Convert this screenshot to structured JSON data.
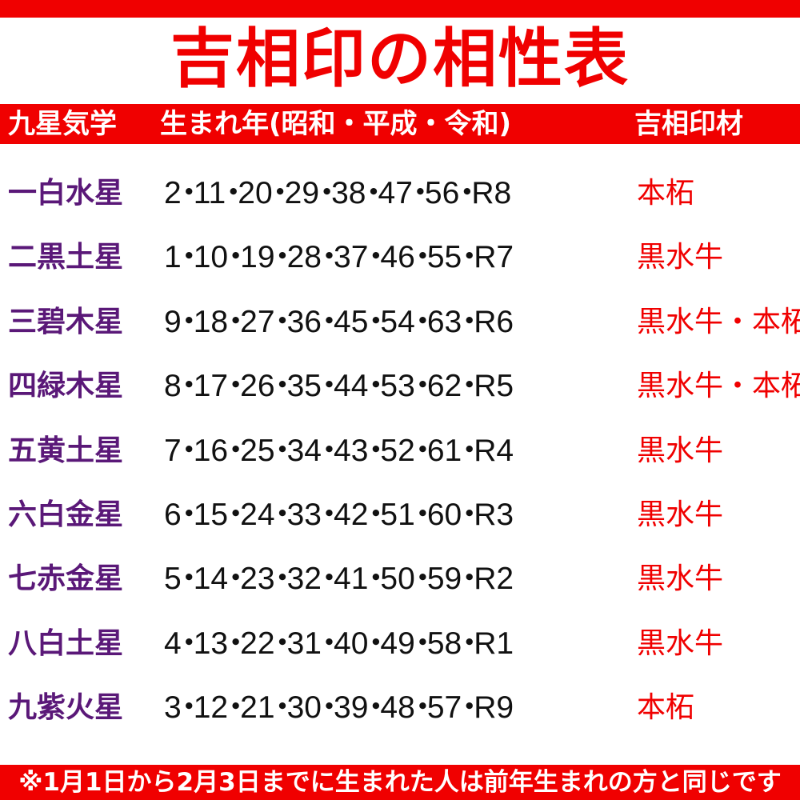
{
  "title": "吉相印の相性表",
  "header": {
    "col_star": "九星気学",
    "col_years": "生まれ年(昭和・平成・令和)",
    "col_material": "吉相印材"
  },
  "rows": [
    {
      "star": "一白水星",
      "years": "2・11・20・29・38・47・56・R8",
      "material": "本柘"
    },
    {
      "star": "二黒土星",
      "years": "1・10・19・28・37・46・55・R7",
      "material": "黒水牛"
    },
    {
      "star": "三碧木星",
      "years": "9・18・27・36・45・54・63・R6",
      "material": "黒水牛・本柘"
    },
    {
      "star": "四緑木星",
      "years": "8・17・26・35・44・53・62・R5",
      "material": "黒水牛・本柘"
    },
    {
      "star": "五黄土星",
      "years": "7・16・25・34・43・52・61・R4",
      "material": "黒水牛"
    },
    {
      "star": "六白金星",
      "years": "6・15・24・33・42・51・60・R3",
      "material": "黒水牛"
    },
    {
      "star": "七赤金星",
      "years": "5・14・23・32・41・50・59・R2",
      "material": "黒水牛"
    },
    {
      "star": "八白土星",
      "years": "4・13・22・31・40・49・58・R1",
      "material": "黒水牛"
    },
    {
      "star": "九紫火星",
      "years": "3・12・21・30・39・48・57・R9",
      "material": "本柘"
    }
  ],
  "footnote": "※1月1日から2月3日までに生まれた人は前年生まれの方と同じです",
  "colors": {
    "accent": "#f00000",
    "star_text": "#5a1878",
    "years_text": "#111111"
  }
}
